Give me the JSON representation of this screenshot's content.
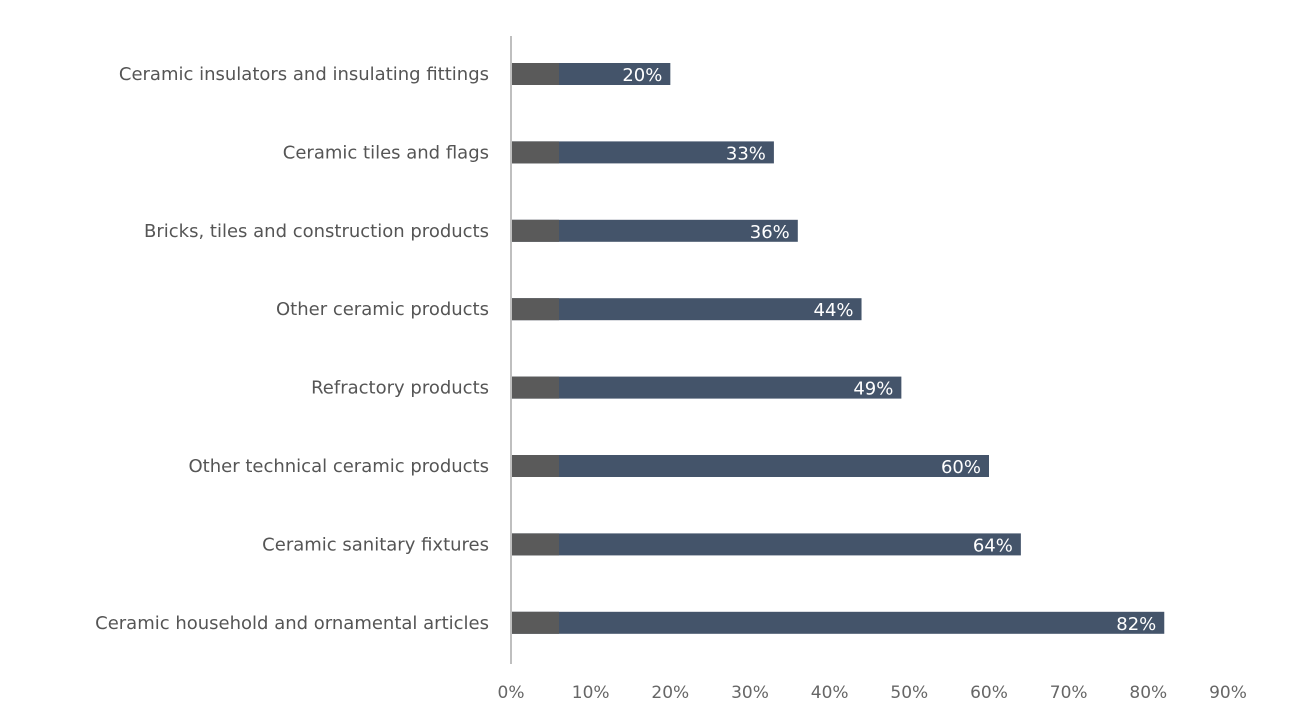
{
  "chart_data": {
    "type": "bar",
    "orientation": "horizontal",
    "categories": [
      "Ceramic insulators and insulating fittings",
      "Ceramic tiles and flags",
      "Bricks, tiles and construction products",
      "Other ceramic products",
      "Refractory products",
      "Other technical ceramic products",
      "Ceramic sanitary fixtures",
      "Ceramic household and ornamental articles"
    ],
    "values": [
      20,
      33,
      36,
      44,
      49,
      60,
      64,
      82
    ],
    "data_labels": [
      "20%",
      "33%",
      "36%",
      "44%",
      "49%",
      "60%",
      "64%",
      "82%"
    ],
    "xlim": [
      0,
      90
    ],
    "x_ticks": [
      0,
      10,
      20,
      30,
      40,
      50,
      60,
      70,
      80,
      90
    ],
    "x_tick_labels": [
      "0%",
      "10%",
      "20%",
      "30%",
      "40%",
      "50%",
      "60%",
      "70%",
      "80%",
      "90%"
    ],
    "title": "",
    "xlabel": "",
    "ylabel": "",
    "grid": false,
    "legend": "none",
    "colors": {
      "bar": "#44546a",
      "bar_inner": "#5a5a5a",
      "axis": "#bfbfbf",
      "category_text": "#555555",
      "tick_text": "#666666",
      "data_label_text": "#ffffff"
    }
  }
}
